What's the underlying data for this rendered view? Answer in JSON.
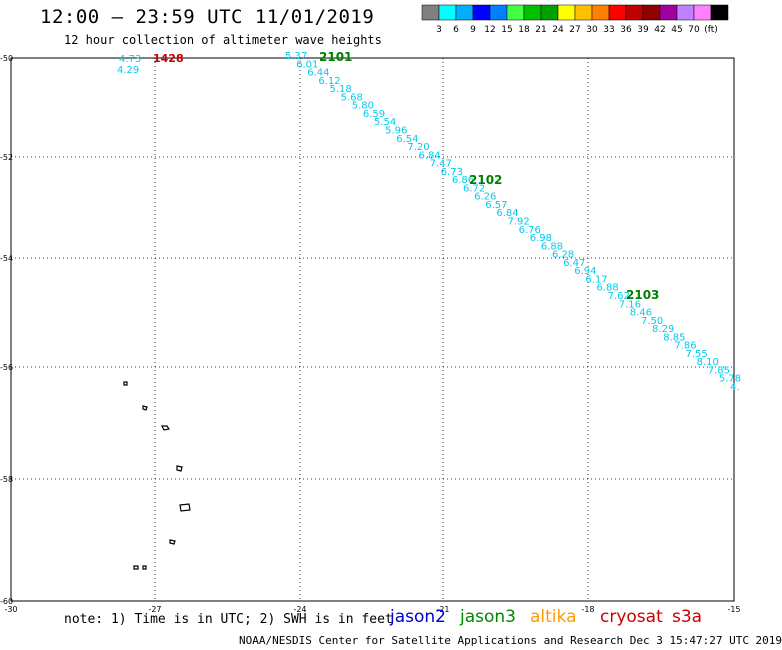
{
  "header": {
    "title": "12:00 – 23:59 UTC 11/01/2019",
    "subtitle": "12 hour collection of altimeter wave heights"
  },
  "scale": {
    "colors": [
      "#808080",
      "#00ffff",
      "#00b0ff",
      "#0000ff",
      "#0080ff",
      "#40ff40",
      "#00c000",
      "#00a000",
      "#ffff00",
      "#ffc000",
      "#ff8000",
      "#ff0000",
      "#c00000",
      "#900000",
      "#a000a0",
      "#c080ff",
      "#ff80ff",
      "#000000"
    ],
    "labels": [
      "3",
      "6",
      "9",
      "12",
      "15",
      "18",
      "21",
      "24",
      "27",
      "30",
      "33",
      "36",
      "39",
      "42",
      "45",
      "70",
      "(ft)"
    ]
  },
  "map": {
    "lon_range": [
      -30,
      -15
    ],
    "lat_range": [
      -60,
      -50
    ],
    "lon_ticks": [
      "-30",
      "-27",
      "-24",
      "-21",
      "-18",
      "-15"
    ],
    "lat_ticks": [
      "-50",
      "-52",
      "-54",
      "-56",
      "-58",
      "-60"
    ]
  },
  "tracks": {
    "west_values": [
      "4.73",
      "4.29"
    ],
    "west_time": "1428",
    "main_values": [
      "5.37",
      "6.01",
      "6.44",
      "6.12",
      "5.18",
      "5.68",
      "5.80",
      "6.59",
      "5.54",
      "5.96",
      "6.54",
      "7.20",
      "6.84",
      "7.47",
      "6.73",
      "6.86",
      "6.72",
      "6.26",
      "6.57",
      "6.84",
      "7.92",
      "6.76",
      "6.98",
      "6.88",
      "6.28",
      "6.47",
      "6.94",
      "6.17",
      "6.88",
      "7.62",
      "7.16",
      "8.46",
      "7.50",
      "8.29",
      "8.85",
      "7.86",
      "7.55",
      "8.10",
      "7.85",
      "5.78",
      "4."
    ],
    "times": [
      "2101",
      "2102",
      "2103"
    ],
    "colors": {
      "value": "#00ccee",
      "jason3": "#008000",
      "cryosat": "#cc0000"
    }
  },
  "footer": {
    "note": "note: 1) Time is in UTC; 2) SWH is in feet",
    "missions": [
      {
        "name": "jason2",
        "color": "#0000cc"
      },
      {
        "name": "jason3",
        "color": "#008800"
      },
      {
        "name": "altika",
        "color": "#ff9900"
      },
      {
        "name": "cryosat",
        "color": "#cc0000"
      },
      {
        "name": "s3a",
        "color": "#cc0000"
      }
    ],
    "credit": "NOAA/NESDIS Center for Satellite Applications and Research   Dec  3 15:47:27 UTC 2019"
  }
}
